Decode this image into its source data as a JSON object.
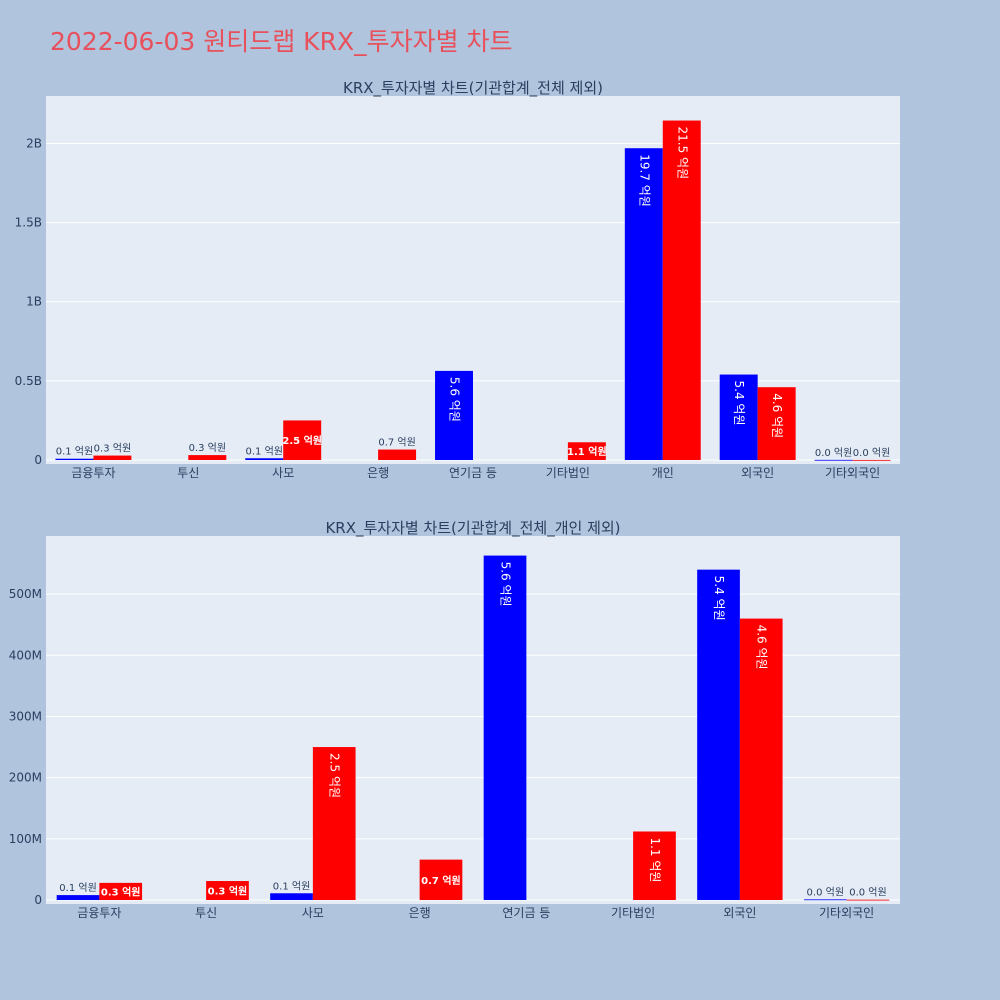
{
  "page_title": "2022-06-03 원티드랩 KRX_투자자별 차트",
  "colors": {
    "background": "#b0c4de",
    "plot_bg": "#e5ecf6",
    "buy": "#0000ff",
    "sell": "#ff0000",
    "title": "#e8505b",
    "text": "#2a3f5f"
  },
  "chart_data": [
    {
      "type": "bar",
      "title": "KRX_투자자별 차트(기관합계_전체 제외)",
      "categories": [
        "금융투자",
        "투신",
        "사모",
        "은행",
        "연기금 등",
        "기타법인",
        "개인",
        "외국인",
        "기타외국인"
      ],
      "ylim": [
        0,
        2300000000
      ],
      "yticks": [
        0,
        500000000,
        1000000000,
        1500000000,
        2000000000
      ],
      "ytick_labels": [
        "0",
        "0.5B",
        "1B",
        "1.5B",
        "2B"
      ],
      "grid": true,
      "series": [
        {
          "values": [
            8000000,
            0,
            11000000,
            0,
            563000000,
            0,
            1970000000,
            540000000,
            1000000
          ],
          "labels": [
            "0.1 억원",
            "",
            "0.1 억원",
            "",
            "5.6 억원",
            "",
            "19.7 억원",
            "5.4 억원",
            "0.0 억원"
          ]
        },
        {
          "values": [
            28000000,
            31000000,
            250000000,
            66000000,
            0,
            112000000,
            2145000000,
            460000000,
            500000
          ],
          "labels": [
            "0.3 억원",
            "0.3 억원",
            "2.5 억원",
            "0.7 억원",
            "",
            "1.1 억원",
            "21.5 억원",
            "4.6 억원",
            "0.0 억원"
          ]
        }
      ]
    },
    {
      "type": "bar",
      "title": "KRX_투자자별 차트(기관합계_전체_개인 제외)",
      "categories": [
        "금융투자",
        "투신",
        "사모",
        "은행",
        "연기금 등",
        "기타법인",
        "외국인",
        "기타외국인"
      ],
      "ylim": [
        0,
        595000000
      ],
      "yticks": [
        0,
        100000000,
        200000000,
        300000000,
        400000000,
        500000000
      ],
      "ytick_labels": [
        "0",
        "100M",
        "200M",
        "300M",
        "400M",
        "500M"
      ],
      "grid": true,
      "series": [
        {
          "values": [
            8000000,
            0,
            11000000,
            0,
            563000000,
            0,
            540000000,
            1000000
          ],
          "labels": [
            "0.1 억원",
            "",
            "0.1 억원",
            "",
            "5.6 억원",
            "",
            "5.4 억원",
            "0.0 억원"
          ]
        },
        {
          "values": [
            28000000,
            31000000,
            250000000,
            66000000,
            0,
            112000000,
            460000000,
            500000
          ],
          "labels": [
            "0.3 억원",
            "0.3 억원",
            "2.5 억원",
            "0.7 억원",
            "",
            "1.1 억원",
            "4.6 억원",
            "0.0 억원"
          ]
        }
      ]
    }
  ]
}
